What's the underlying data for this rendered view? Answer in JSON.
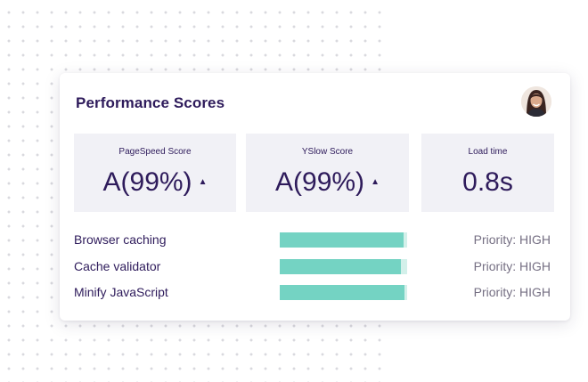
{
  "card": {
    "title": "Performance Scores"
  },
  "metrics": [
    {
      "label": "PageSpeed Score",
      "value": "A(99%)",
      "trend_icon": "caret-up-icon"
    },
    {
      "label": "YSlow Score",
      "value": "A(99%)",
      "trend_icon": "caret-up-icon"
    },
    {
      "label": "Load time",
      "value": "0.8s"
    }
  ],
  "recommendations": [
    {
      "label": "Browser caching",
      "bar_fill": 0.97,
      "priority": "Priority: HIGH"
    },
    {
      "label": "Cache validator",
      "bar_fill": 0.95,
      "priority": "Priority: HIGH"
    },
    {
      "label": "Minify JavaScript",
      "bar_fill": 0.98,
      "priority": "Priority: HIGH"
    }
  ],
  "colors": {
    "accent_bar": "#74d3c3",
    "bar_track": "#d3f0ea",
    "text_primary": "#2e1b5b",
    "text_secondary": "#756f83",
    "tile_background": "#f1f1f6"
  }
}
